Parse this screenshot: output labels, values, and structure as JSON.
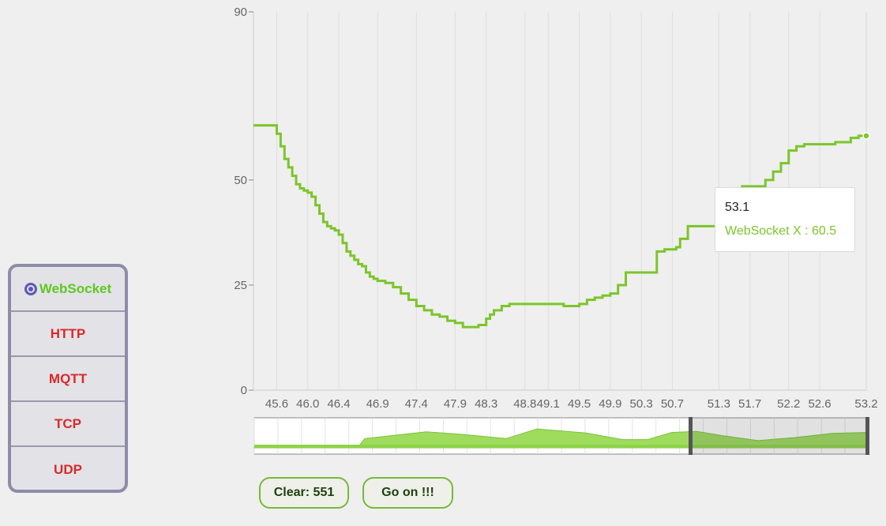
{
  "protocols": [
    {
      "label": "WebSocket",
      "active": true
    },
    {
      "label": "HTTP",
      "active": false
    },
    {
      "label": "MQTT",
      "active": false
    },
    {
      "label": "TCP",
      "active": false
    },
    {
      "label": "UDP",
      "active": false
    }
  ],
  "tooltip": {
    "title": "53.1",
    "series_label": "WebSocket X : 60.5"
  },
  "buttons": {
    "clear_label": "Clear: 551",
    "goon_label": "Go on !!!"
  },
  "chart_data": {
    "type": "line",
    "title": "",
    "xlabel": "",
    "ylabel": "",
    "ylim": [
      0,
      90
    ],
    "yticks": [
      0,
      25,
      50,
      90
    ],
    "xticks": [
      45.6,
      46.0,
      46.4,
      46.9,
      47.4,
      47.9,
      48.3,
      48.8,
      49.1,
      49.5,
      49.9,
      50.3,
      50.7,
      51.3,
      51.7,
      52.2,
      52.6,
      53.2
    ],
    "xlim": [
      45.3,
      53.2
    ],
    "series": [
      {
        "color": "#7cc52a",
        "x": [
          45.3,
          45.55,
          45.6,
          45.65,
          45.7,
          45.75,
          45.8,
          45.85,
          45.9,
          45.95,
          46.0,
          46.05,
          46.1,
          46.15,
          46.2,
          46.25,
          46.3,
          46.35,
          46.4,
          46.45,
          46.5,
          46.55,
          46.6,
          46.65,
          46.7,
          46.75,
          46.8,
          46.85,
          46.9,
          47.0,
          47.1,
          47.2,
          47.3,
          47.4,
          47.5,
          47.6,
          47.7,
          47.8,
          47.9,
          48.0,
          48.1,
          48.2,
          48.3,
          48.35,
          48.4,
          48.5,
          48.6,
          48.7,
          48.8,
          48.9,
          49.0,
          49.1,
          49.2,
          49.3,
          49.4,
          49.5,
          49.6,
          49.7,
          49.8,
          49.9,
          50.0,
          50.1,
          50.2,
          50.3,
          50.4,
          50.5,
          50.6,
          50.7,
          50.75,
          50.8,
          50.9,
          51.0,
          51.1,
          51.2,
          51.3,
          51.4,
          51.5,
          51.6,
          51.7,
          51.8,
          51.9,
          52.0,
          52.1,
          52.2,
          52.3,
          52.4,
          52.5,
          52.6,
          52.7,
          52.8,
          52.9,
          53.0,
          53.1,
          53.2
        ],
        "y": [
          63,
          63,
          61,
          58,
          55,
          53,
          51,
          49,
          48,
          47.5,
          47,
          46,
          44,
          42,
          40,
          39,
          38.5,
          38,
          37,
          35,
          33,
          32,
          31,
          30,
          29.5,
          28,
          27,
          26.5,
          26,
          25.5,
          24.5,
          23,
          21.5,
          20,
          19,
          18,
          17.5,
          16.5,
          16,
          15,
          15,
          15.5,
          17,
          18,
          19,
          20,
          20.5,
          20.5,
          20.5,
          20.5,
          20.5,
          20.5,
          20.5,
          20,
          20,
          20.5,
          21.5,
          22,
          22.5,
          23,
          25,
          28,
          28,
          28,
          28,
          33,
          33.5,
          33.5,
          34,
          36,
          39,
          39,
          39,
          39,
          39,
          41,
          48,
          48.5,
          48.5,
          48.5,
          50,
          52,
          54,
          57,
          58,
          58.5,
          58.5,
          58.5,
          58.5,
          59,
          59,
          60,
          60.5,
          60.5
        ]
      }
    ],
    "overview": {
      "x_highlight_start": 50.7,
      "x_highlight_end": 53.2
    }
  }
}
